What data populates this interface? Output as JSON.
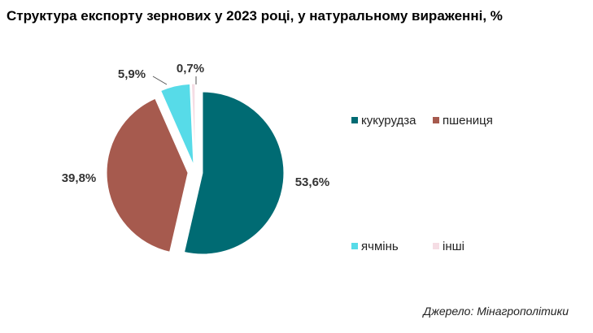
{
  "title": "Структура експорту зернових у 2023 році, у натуральному вираженні, %",
  "source": "Джерело: Мінагрополітики",
  "chart_data": {
    "type": "pie",
    "title": "Структура експорту зернових у 2023 році, у натуральному вираженні, %",
    "unit": "%",
    "slices": [
      {
        "name": "кукурудза",
        "value": 53.6,
        "label": "53,6%",
        "color": "#006b73"
      },
      {
        "name": "пшениця",
        "value": 39.8,
        "label": "39,8%",
        "color": "#a65a4e"
      },
      {
        "name": "ячмінь",
        "value": 5.9,
        "label": "5,9%",
        "color": "#57dbe8"
      },
      {
        "name": "інші",
        "value": 0.7,
        "label": "0,7%",
        "color": "#f5dde4"
      }
    ],
    "legend_placement": "right",
    "exploded": true
  }
}
